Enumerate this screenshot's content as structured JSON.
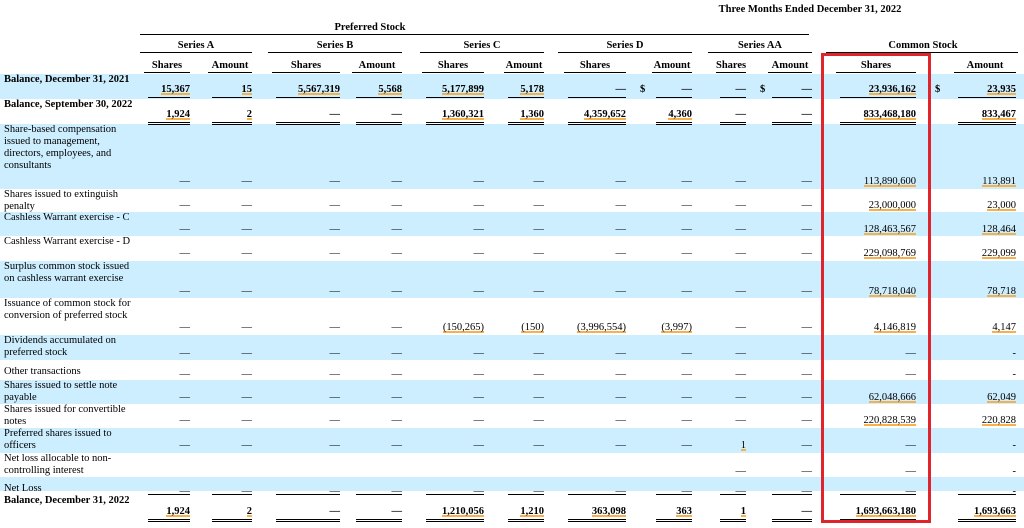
{
  "header": {
    "period": "Three Months Ended December 31, 2022",
    "preferred_stock": "Preferred Stock",
    "series": [
      "Series A",
      "Series B",
      "Series C",
      "Series D",
      "Series AA"
    ],
    "common_stock": "Common Stock",
    "shares": "Shares",
    "amount": "Amount"
  },
  "rows": [
    {
      "label": "Balance, December 31, 2021",
      "bold": true,
      "values": [
        "15,367",
        "15",
        "5,567,319",
        "5,568",
        "5,177,899",
        "5,178",
        "—",
        "—",
        "—",
        "—",
        "23,936,162",
        "23,935"
      ],
      "dollars": [
        true,
        false,
        true,
        false,
        true,
        false,
        false,
        true,
        false,
        true,
        false,
        true
      ]
    },
    {
      "label": "Balance, September 30, 2022",
      "bold": true,
      "values": [
        "1,924",
        "2",
        "—",
        "—",
        "1,360,321",
        "1,360",
        "4,359,652",
        "4,360",
        "—",
        "—",
        "833,468,180",
        "833,467"
      ]
    },
    {
      "label": "Share-based compensation issued to management, directors, employees, and consultants",
      "values": [
        "—",
        "—",
        "—",
        "—",
        "—",
        "—",
        "—",
        "—",
        "—",
        "—",
        "113,890,600",
        "113,891"
      ]
    },
    {
      "label": "Shares issued to extinguish penalty",
      "values": [
        "—",
        "—",
        "—",
        "—",
        "—",
        "—",
        "—",
        "—",
        "—",
        "—",
        "23,000,000",
        "23,000"
      ]
    },
    {
      "label": "Cashless Warrant exercise - C",
      "values": [
        "—",
        "—",
        "—",
        "—",
        "—",
        "—",
        "—",
        "—",
        "—",
        "—",
        "128,463,567",
        "128,464"
      ]
    },
    {
      "label": "Cashless Warrant exercise - D",
      "values": [
        "—",
        "—",
        "—",
        "—",
        "—",
        "—",
        "—",
        "—",
        "—",
        "—",
        "229,098,769",
        "229,099"
      ]
    },
    {
      "label": "Surplus common stock issued on cashless warrant exercise",
      "values": [
        "—",
        "—",
        "—",
        "—",
        "—",
        "—",
        "—",
        "—",
        "—",
        "—",
        "78,718,040",
        "78,718"
      ]
    },
    {
      "label": "Issuance of common stock for conversion of preferred stock",
      "values": [
        "—",
        "—",
        "—",
        "—",
        "(150,265)",
        "(150)",
        "(3,996,554)",
        "(3,997)",
        "—",
        "—",
        "4,146,819",
        "4,147"
      ]
    },
    {
      "label": "Dividends accumulated on preferred stock",
      "values": [
        "—",
        "—",
        "—",
        "—",
        "—",
        "—",
        "—",
        "—",
        "—",
        "—",
        "—",
        "-"
      ]
    },
    {
      "label": "Other transactions",
      "values": [
        "—",
        "—",
        "—",
        "—",
        "—",
        "—",
        "—",
        "—",
        "—",
        "—",
        "—",
        "-"
      ]
    },
    {
      "label": "Shares issued to settle note payable",
      "values": [
        "—",
        "—",
        "—",
        "—",
        "—",
        "—",
        "—",
        "—",
        "—",
        "—",
        "62,048,666",
        "62,049"
      ]
    },
    {
      "label": "Shares issued for convertible notes",
      "values": [
        "—",
        "—",
        "—",
        "—",
        "—",
        "—",
        "—",
        "—",
        "—",
        "—",
        "220,828,539",
        "220,828"
      ]
    },
    {
      "label": "Preferred shares issued to officers",
      "values": [
        "—",
        "—",
        "—",
        "—",
        "—",
        "—",
        "—",
        "—",
        "1",
        "—",
        "—",
        "-"
      ]
    },
    {
      "label": "Net loss allocable to non-controlling interest",
      "values": [
        "",
        "",
        "",
        "",
        "",
        "",
        "",
        "",
        "—",
        "—",
        "—",
        "-"
      ]
    },
    {
      "label": "Net Loss",
      "values": [
        "—",
        "—",
        "—",
        "—",
        "—",
        "—",
        "—",
        "—",
        "—",
        "—",
        "—",
        "-"
      ]
    },
    {
      "label": "Balance, December 31, 2022",
      "bold": true,
      "values": [
        "1,924",
        "2",
        "—",
        "—",
        "1,210,056",
        "1,210",
        "363,098",
        "363",
        "1",
        "—",
        "1,693,663,180",
        "1,693,663"
      ]
    }
  ],
  "dollar_sign": "$",
  "colors": {
    "band": "#cceeff",
    "highlight": "#f7b04a",
    "focus_box": "#e0242c"
  }
}
